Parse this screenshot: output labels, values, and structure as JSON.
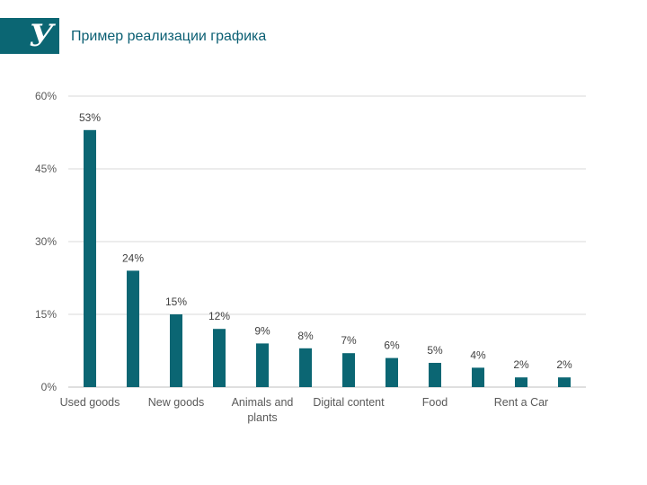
{
  "header": {
    "title": "Пример реализации графика",
    "logo_letter": "У",
    "brand_color": "#0b6673"
  },
  "chart_data": {
    "type": "bar",
    "categories": [
      "Used goods",
      "",
      "New goods",
      "",
      "Animals and plants",
      "",
      "Digital content",
      "",
      "Food",
      "",
      "Rent a Car",
      ""
    ],
    "values": [
      53,
      24,
      15,
      12,
      9,
      8,
      7,
      6,
      5,
      4,
      2,
      2
    ],
    "data_labels": [
      "53%",
      "24%",
      "15%",
      "12%",
      "9%",
      "8%",
      "7%",
      "6%",
      "5%",
      "4%",
      "2%",
      "2%"
    ],
    "y_ticks": [
      0,
      15,
      30,
      45,
      60
    ],
    "y_tick_labels": [
      "0%",
      "15%",
      "30%",
      "45%",
      "60%"
    ],
    "ylim": [
      0,
      60
    ],
    "grid": true,
    "bar_color": "#0b6673",
    "title": "",
    "xlabel": "",
    "ylabel": ""
  }
}
